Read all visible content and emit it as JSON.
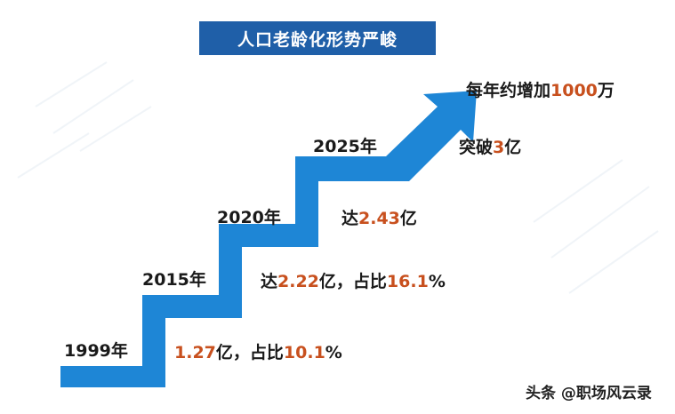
{
  "title": "人口老龄化形势严峻",
  "years": [
    "1999年",
    "2015年",
    "2020年",
    "2025年"
  ],
  "annotations": [
    {
      "pre": "",
      "hi1": "1.27",
      "mid": "亿，占比",
      "hi2": "10.1",
      "post": "%"
    },
    {
      "pre": "达",
      "hi1": "2.22",
      "mid": "亿，占比",
      "hi2": "16.1",
      "post": "%"
    },
    {
      "pre": "达",
      "hi1": "2.43",
      "mid": "亿",
      "hi2": "",
      "post": ""
    },
    {
      "pre": "突破",
      "hi1": "3",
      "mid": "亿",
      "hi2": "",
      "post": ""
    },
    {
      "pre": "每年约增加",
      "hi1": "1000",
      "mid": "万",
      "hi2": "",
      "post": ""
    }
  ],
  "colors": {
    "arrow": "#1e86d6",
    "highlight": "#c8501e",
    "title_bg": "#1f5fa8"
  },
  "watermark": "头条 @职场风云录"
}
